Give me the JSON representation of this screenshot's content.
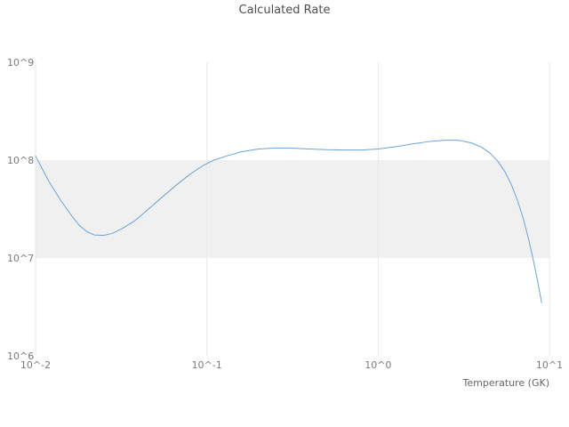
{
  "title": "Calculated Rate",
  "x_axis": {
    "label": "Temperature (GK)",
    "tick_labels": [
      "10^-2",
      "10^-1",
      "10^0",
      "10^1"
    ],
    "tick_values": [
      0.01,
      0.1,
      1,
      10
    ]
  },
  "y_axis": {
    "tick_labels": [
      "10^6",
      "10^7",
      "10^8",
      "10^9"
    ],
    "tick_values": [
      1000000.0,
      10000000.0,
      100000000.0,
      1000000000.0
    ]
  },
  "band": {
    "y_min": 10000000.0,
    "y_max": 100000000.0
  },
  "colors": {
    "line": "#6ba3d6",
    "band": "#f0f0f0",
    "grid": "#e9e9e9",
    "title_text": "#4d4d4d",
    "tick_text": "#7a7a7a"
  },
  "chart_data": {
    "type": "line",
    "title": "Calculated Rate",
    "xlabel": "Temperature (GK)",
    "ylabel": "",
    "x_scale": "log",
    "y_scale": "log",
    "xlim": [
      0.01,
      10
    ],
    "ylim": [
      1000000.0,
      1000000000.0
    ],
    "legend": "none",
    "shaded_band": {
      "y_min": 10000000.0,
      "y_max": 100000000.0
    },
    "x": [
      0.01,
      0.011,
      0.012,
      0.014,
      0.016,
      0.018,
      0.02,
      0.022,
      0.025,
      0.028,
      0.032,
      0.038,
      0.045,
      0.055,
      0.065,
      0.08,
      0.095,
      0.11,
      0.13,
      0.16,
      0.2,
      0.25,
      0.3,
      0.4,
      0.5,
      0.65,
      0.8,
      1.0,
      1.3,
      1.6,
      2.0,
      2.5,
      3.0,
      3.5,
      4.0,
      4.5,
      5.0,
      5.5,
      6.0,
      6.5,
      7.0,
      7.5,
      8.0,
      8.5,
      9.0
    ],
    "y": [
      110000000.0,
      80000000.0,
      60000000.0,
      39000000.0,
      28000000.0,
      21500000.0,
      18500000.0,
      17200000.0,
      17000000.0,
      17800000.0,
      20000000.0,
      24000000.0,
      31000000.0,
      42000000.0,
      54000000.0,
      72000000.0,
      88000000.0,
      100000000.0,
      110000000.0,
      122000000.0,
      130000000.0,
      133000000.0,
      133000000.0,
      130000000.0,
      128000000.0,
      127000000.0,
      127000000.0,
      130000000.0,
      138000000.0,
      147000000.0,
      155000000.0,
      160000000.0,
      159000000.0,
      150000000.0,
      136000000.0,
      118000000.0,
      97000000.0,
      76000000.0,
      56000000.0,
      39000000.0,
      26000000.0,
      16500000.0,
      10000000.0,
      6000000.0,
      3500000.0
    ]
  }
}
